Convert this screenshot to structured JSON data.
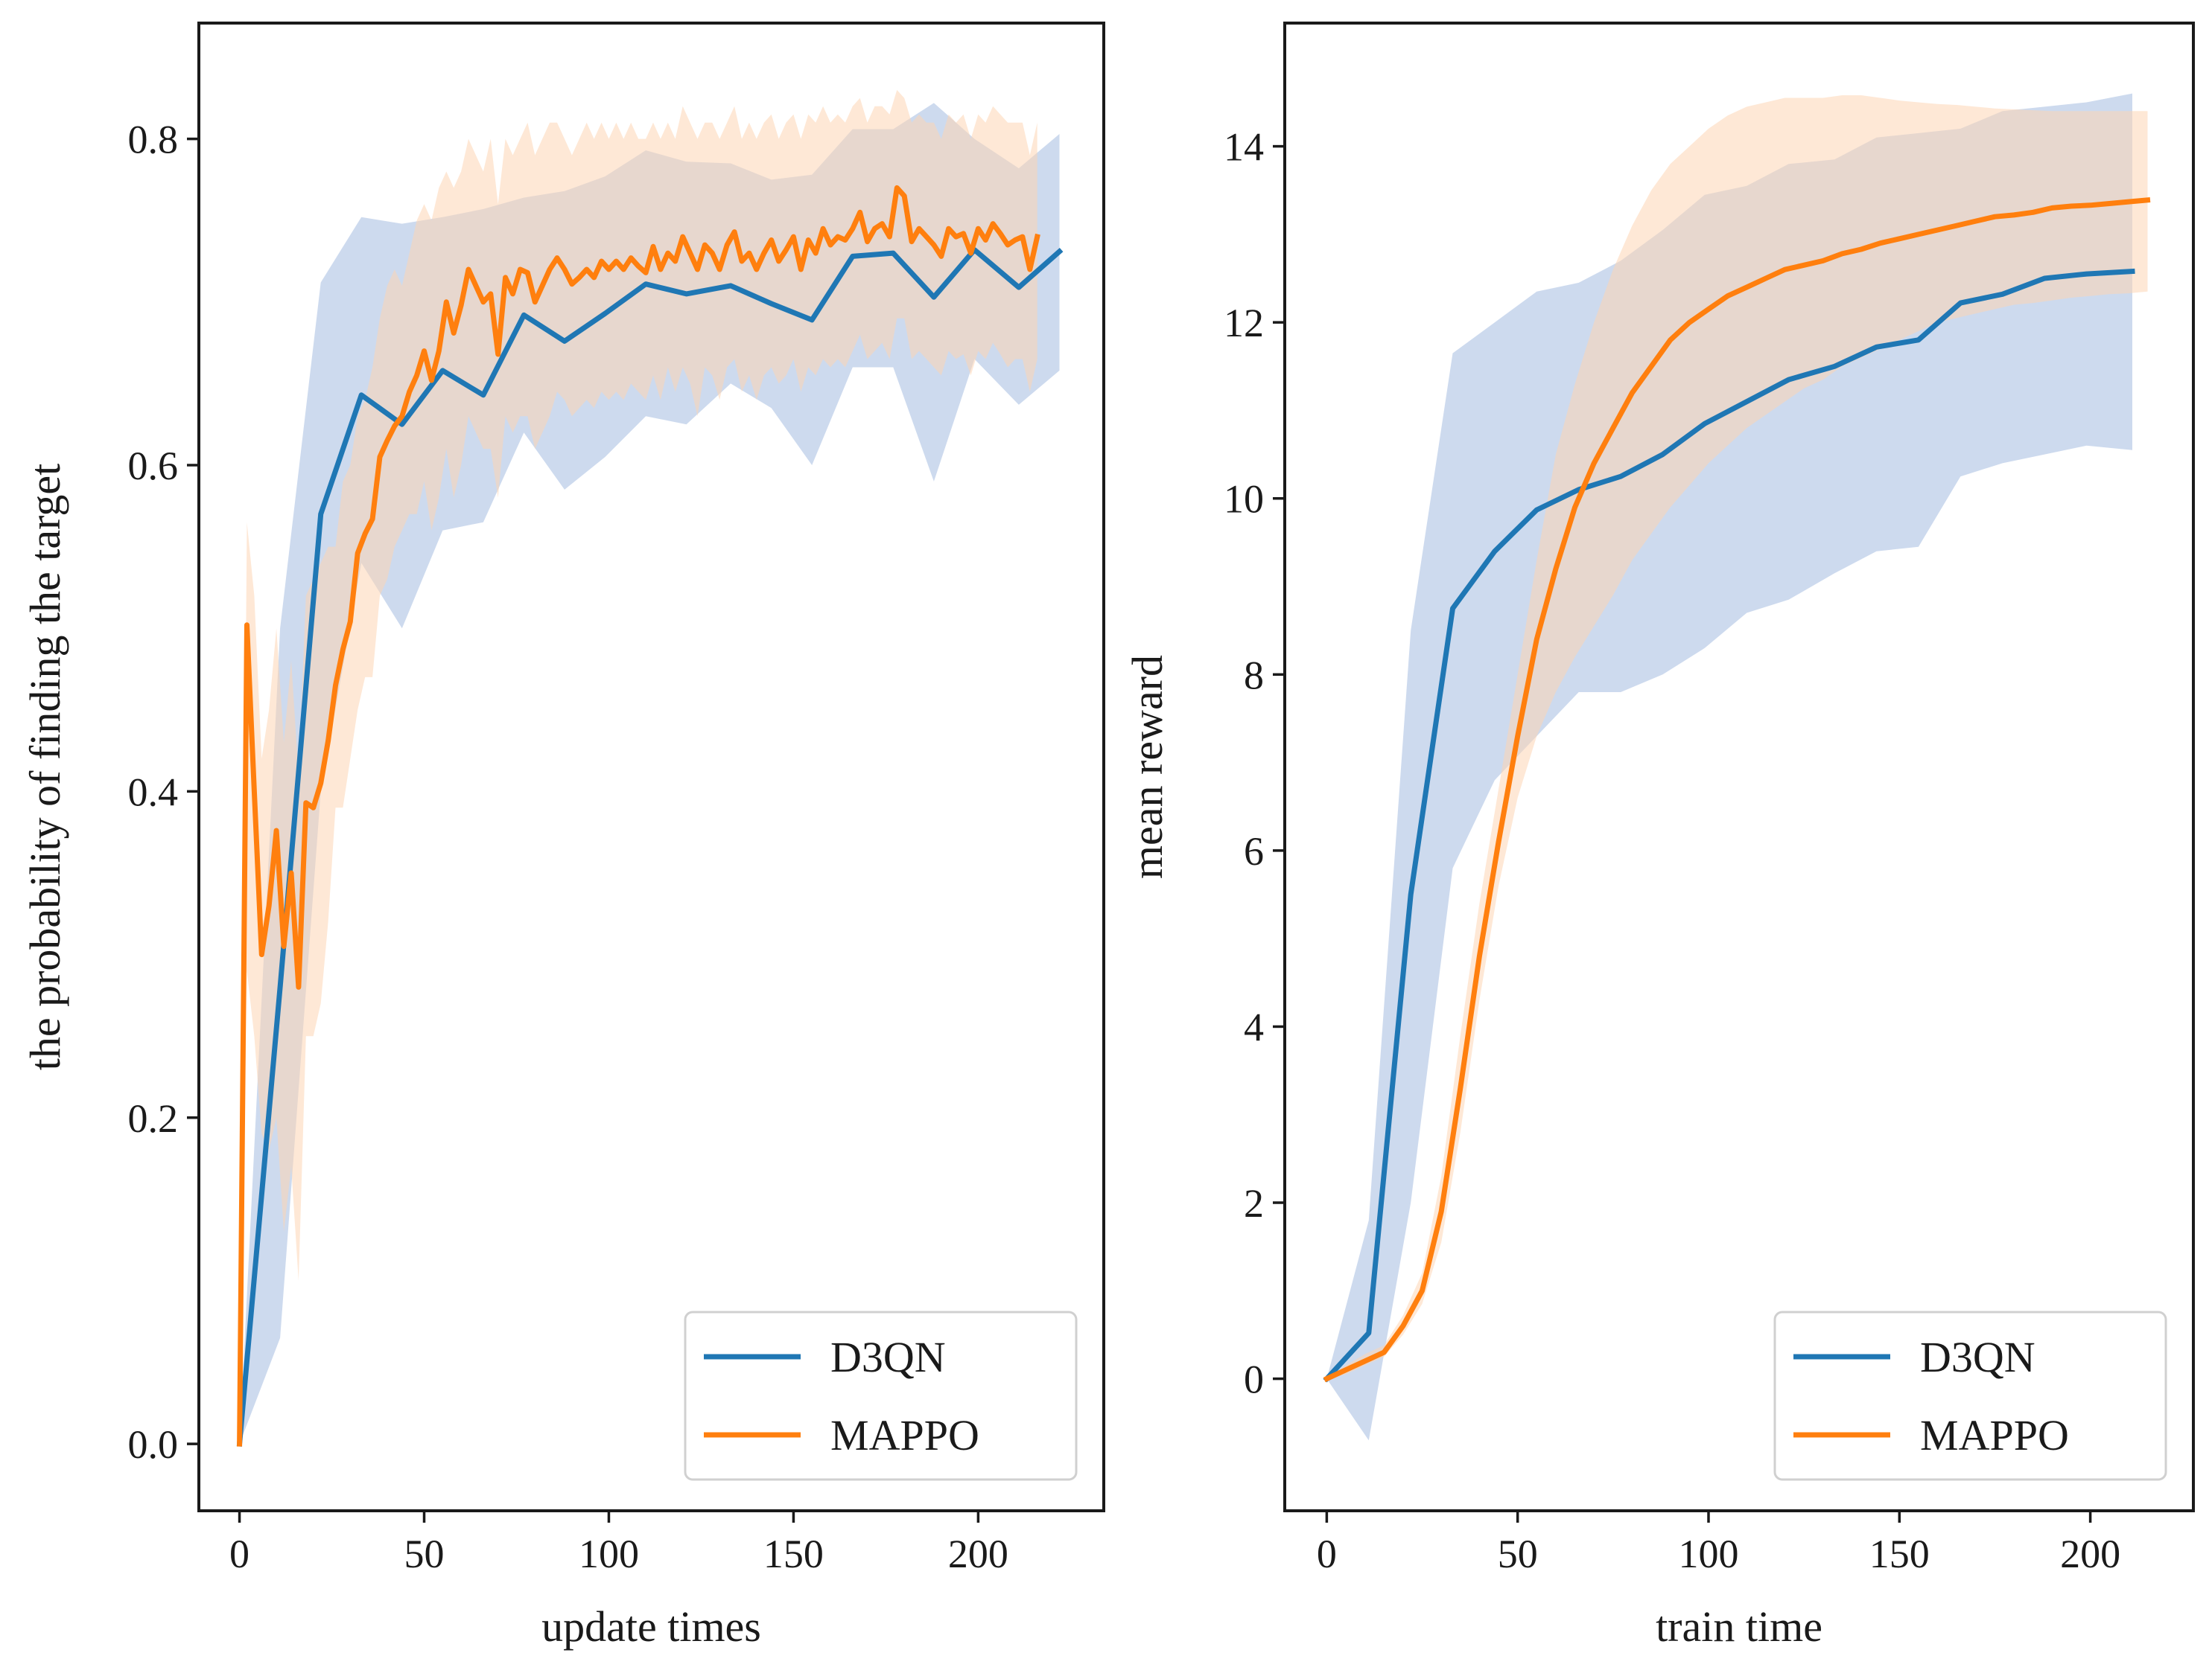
{
  "chart_data": [
    {
      "type": "line",
      "title": "",
      "xlabel": "update times",
      "ylabel": "the probability of finding the target",
      "xlim": [
        -11,
        234
      ],
      "ylim": [
        -0.041,
        0.871
      ],
      "xticks": [
        0,
        50,
        100,
        150,
        200
      ],
      "yticks": [
        0.0,
        0.2,
        0.4,
        0.6,
        0.8
      ],
      "xtick_labels": [
        "0",
        "50",
        "100",
        "150",
        "200"
      ],
      "ytick_labels": [
        "0.0",
        "0.2",
        "0.4",
        "0.6",
        "0.8"
      ],
      "grid": false,
      "legend_position": "lower-right",
      "series": [
        {
          "name": "D3QN",
          "color": "#1f77b4",
          "band_color": "#aec3e3",
          "x": [
            0,
            11,
            22,
            33,
            44,
            55,
            66,
            77,
            88,
            99,
            110,
            121,
            133,
            144,
            155,
            166,
            177,
            188,
            199,
            211,
            222
          ],
          "y": [
            0.0,
            0.28,
            0.57,
            0.643,
            0.625,
            0.658,
            0.643,
            0.692,
            0.676,
            0.693,
            0.711,
            0.705,
            0.71,
            0.699,
            0.689,
            0.728,
            0.73,
            0.703,
            0.732,
            0.709,
            0.731
          ],
          "lower": [
            0.0,
            0.065,
            0.4,
            0.54,
            0.5,
            0.56,
            0.565,
            0.62,
            0.585,
            0.605,
            0.63,
            0.625,
            0.65,
            0.635,
            0.6,
            0.66,
            0.66,
            0.59,
            0.665,
            0.637,
            0.658
          ],
          "upper": [
            0.0,
            0.5,
            0.712,
            0.752,
            0.748,
            0.752,
            0.757,
            0.764,
            0.768,
            0.777,
            0.793,
            0.786,
            0.785,
            0.775,
            0.778,
            0.806,
            0.806,
            0.822,
            0.8,
            0.782,
            0.803
          ]
        },
        {
          "name": "MAPPO",
          "color": "#ff7f0e",
          "band_color": "#fdd6b5",
          "x": [
            0,
            2,
            4,
            6,
            8,
            10,
            12,
            14,
            16,
            18,
            20,
            22,
            24,
            26,
            28,
            30,
            32,
            34,
            36,
            38,
            40,
            42,
            44,
            46,
            48,
            50,
            52,
            54,
            56,
            58,
            60,
            62,
            64,
            66,
            68,
            70,
            72,
            74,
            76,
            78,
            80,
            82,
            84,
            86,
            88,
            90,
            92,
            94,
            96,
            98,
            100,
            102,
            104,
            106,
            108,
            110,
            112,
            114,
            116,
            118,
            120,
            122,
            124,
            126,
            128,
            130,
            132,
            134,
            136,
            138,
            140,
            142,
            144,
            146,
            148,
            150,
            152,
            154,
            156,
            158,
            160,
            162,
            164,
            166,
            168,
            170,
            172,
            174,
            176,
            178,
            180,
            182,
            184,
            186,
            188,
            190,
            192,
            194,
            196,
            198,
            200,
            202,
            204,
            206,
            208,
            210,
            212,
            214,
            216
          ],
          "y": [
            0.0,
            0.502,
            0.4,
            0.3,
            0.33,
            0.376,
            0.305,
            0.35,
            0.28,
            0.393,
            0.39,
            0.405,
            0.431,
            0.465,
            0.487,
            0.504,
            0.546,
            0.558,
            0.567,
            0.605,
            0.615,
            0.624,
            0.63,
            0.645,
            0.655,
            0.67,
            0.652,
            0.67,
            0.7,
            0.681,
            0.698,
            0.72,
            0.71,
            0.7,
            0.705,
            0.668,
            0.715,
            0.705,
            0.72,
            0.718,
            0.7,
            0.71,
            0.72,
            0.727,
            0.72,
            0.711,
            0.715,
            0.72,
            0.715,
            0.725,
            0.72,
            0.725,
            0.72,
            0.727,
            0.722,
            0.718,
            0.734,
            0.72,
            0.73,
            0.725,
            0.74,
            0.73,
            0.72,
            0.735,
            0.73,
            0.72,
            0.735,
            0.743,
            0.725,
            0.73,
            0.72,
            0.73,
            0.738,
            0.725,
            0.732,
            0.74,
            0.72,
            0.738,
            0.73,
            0.745,
            0.735,
            0.74,
            0.738,
            0.745,
            0.755,
            0.737,
            0.745,
            0.748,
            0.74,
            0.77,
            0.765,
            0.737,
            0.745,
            0.74,
            0.735,
            0.728,
            0.745,
            0.74,
            0.742,
            0.73,
            0.745,
            0.738,
            0.748,
            0.742,
            0.735,
            0.738,
            0.74,
            0.72,
            0.74
          ],
          "lower": [
            0.0,
            0.29,
            0.25,
            0.19,
            0.18,
            0.2,
            0.13,
            0.17,
            0.1,
            0.25,
            0.25,
            0.27,
            0.32,
            0.39,
            0.39,
            0.42,
            0.45,
            0.47,
            0.47,
            0.52,
            0.53,
            0.55,
            0.56,
            0.57,
            0.57,
            0.59,
            0.56,
            0.58,
            0.61,
            0.58,
            0.6,
            0.63,
            0.62,
            0.61,
            0.61,
            0.58,
            0.63,
            0.62,
            0.63,
            0.63,
            0.61,
            0.62,
            0.63,
            0.645,
            0.64,
            0.63,
            0.635,
            0.64,
            0.635,
            0.645,
            0.64,
            0.645,
            0.64,
            0.65,
            0.645,
            0.64,
            0.655,
            0.64,
            0.66,
            0.645,
            0.66,
            0.65,
            0.63,
            0.66,
            0.655,
            0.64,
            0.66,
            0.665,
            0.645,
            0.655,
            0.64,
            0.655,
            0.66,
            0.65,
            0.655,
            0.665,
            0.645,
            0.66,
            0.655,
            0.665,
            0.66,
            0.665,
            0.66,
            0.67,
            0.68,
            0.665,
            0.67,
            0.675,
            0.665,
            0.69,
            0.69,
            0.665,
            0.67,
            0.665,
            0.66,
            0.655,
            0.67,
            0.665,
            0.668,
            0.655,
            0.67,
            0.665,
            0.675,
            0.668,
            0.66,
            0.665,
            0.665,
            0.645,
            0.665
          ],
          "upper": [
            0.0,
            0.565,
            0.52,
            0.42,
            0.45,
            0.5,
            0.43,
            0.48,
            0.41,
            0.52,
            0.53,
            0.54,
            0.55,
            0.55,
            0.59,
            0.6,
            0.63,
            0.64,
            0.66,
            0.69,
            0.71,
            0.72,
            0.71,
            0.73,
            0.75,
            0.76,
            0.75,
            0.77,
            0.78,
            0.77,
            0.78,
            0.8,
            0.79,
            0.78,
            0.8,
            0.76,
            0.8,
            0.79,
            0.8,
            0.81,
            0.79,
            0.8,
            0.81,
            0.81,
            0.8,
            0.79,
            0.8,
            0.81,
            0.8,
            0.81,
            0.8,
            0.81,
            0.8,
            0.81,
            0.8,
            0.8,
            0.81,
            0.8,
            0.81,
            0.8,
            0.82,
            0.81,
            0.8,
            0.81,
            0.81,
            0.8,
            0.81,
            0.82,
            0.8,
            0.81,
            0.8,
            0.81,
            0.815,
            0.8,
            0.81,
            0.815,
            0.8,
            0.815,
            0.81,
            0.82,
            0.81,
            0.815,
            0.81,
            0.82,
            0.825,
            0.81,
            0.82,
            0.82,
            0.815,
            0.83,
            0.825,
            0.81,
            0.815,
            0.81,
            0.81,
            0.8,
            0.815,
            0.81,
            0.815,
            0.8,
            0.815,
            0.81,
            0.82,
            0.815,
            0.81,
            0.81,
            0.81,
            0.79,
            0.81
          ]
        }
      ]
    },
    {
      "type": "line",
      "title": "",
      "xlabel": "train time",
      "ylabel": "mean reward",
      "xlim": [
        -11,
        227
      ],
      "ylim": [
        -1.5,
        15.4
      ],
      "xticks": [
        0,
        50,
        100,
        150,
        200
      ],
      "yticks": [
        0,
        2,
        4,
        6,
        8,
        10,
        12,
        14
      ],
      "xtick_labels": [
        "0",
        "50",
        "100",
        "150",
        "200"
      ],
      "ytick_labels": [
        "0",
        "2",
        "4",
        "6",
        "8",
        "10",
        "12",
        "14"
      ],
      "grid": false,
      "legend_position": "lower-right",
      "series": [
        {
          "name": "D3QN",
          "color": "#1f77b4",
          "band_color": "#aec3e3",
          "x": [
            0,
            11,
            22,
            33,
            44,
            55,
            66,
            77,
            88,
            99,
            110,
            121,
            133,
            144,
            155,
            166,
            177,
            188,
            199,
            211
          ],
          "y": [
            0.0,
            0.52,
            5.5,
            8.75,
            9.4,
            9.87,
            10.1,
            10.25,
            10.5,
            10.85,
            11.1,
            11.35,
            11.5,
            11.72,
            11.8,
            12.22,
            12.32,
            12.5,
            12.55,
            12.58
          ],
          "lower": [
            0.0,
            -0.7,
            2.0,
            5.8,
            6.8,
            7.3,
            7.8,
            7.8,
            8.0,
            8.3,
            8.7,
            8.85,
            9.15,
            9.4,
            9.45,
            10.25,
            10.4,
            10.5,
            10.6,
            10.55
          ],
          "upper": [
            0.0,
            1.8,
            8.5,
            11.65,
            12.0,
            12.35,
            12.45,
            12.7,
            13.05,
            13.45,
            13.55,
            13.8,
            13.85,
            14.1,
            14.15,
            14.2,
            14.4,
            14.45,
            14.5,
            14.6
          ]
        },
        {
          "name": "MAPPO",
          "color": "#ff7f0e",
          "band_color": "#fdd6b5",
          "x": [
            0,
            5,
            10,
            15,
            20,
            25,
            30,
            35,
            40,
            45,
            50,
            55,
            60,
            65,
            70,
            75,
            80,
            85,
            90,
            95,
            100,
            105,
            110,
            115,
            120,
            125,
            130,
            135,
            140,
            145,
            150,
            155,
            160,
            165,
            170,
            175,
            180,
            185,
            190,
            195,
            200,
            205,
            210,
            215
          ],
          "y": [
            0.0,
            0.1,
            0.2,
            0.3,
            0.6,
            1.0,
            1.9,
            3.3,
            4.8,
            6.1,
            7.3,
            8.4,
            9.2,
            9.9,
            10.4,
            10.8,
            11.2,
            11.5,
            11.8,
            12.0,
            12.15,
            12.3,
            12.4,
            12.5,
            12.6,
            12.65,
            12.7,
            12.78,
            12.83,
            12.9,
            12.95,
            13.0,
            13.05,
            13.1,
            13.15,
            13.2,
            13.22,
            13.25,
            13.3,
            13.32,
            13.33,
            13.35,
            13.37,
            13.39
          ],
          "lower": [
            0.0,
            0.05,
            0.15,
            0.25,
            0.5,
            0.85,
            1.55,
            2.8,
            4.3,
            5.6,
            6.6,
            7.3,
            7.8,
            8.2,
            8.55,
            8.9,
            9.3,
            9.6,
            9.9,
            10.15,
            10.4,
            10.6,
            10.8,
            10.95,
            11.1,
            11.25,
            11.35,
            11.5,
            11.6,
            11.7,
            11.8,
            11.9,
            12.0,
            12.05,
            12.1,
            12.15,
            12.2,
            12.22,
            12.25,
            12.28,
            12.3,
            12.32,
            12.33,
            12.35
          ],
          "upper": [
            0.0,
            0.15,
            0.28,
            0.38,
            0.72,
            1.2,
            2.3,
            3.9,
            5.4,
            6.7,
            8.0,
            9.3,
            10.5,
            11.3,
            12.0,
            12.6,
            13.1,
            13.5,
            13.8,
            14.0,
            14.2,
            14.35,
            14.45,
            14.5,
            14.55,
            14.55,
            14.55,
            14.58,
            14.58,
            14.55,
            14.52,
            14.5,
            14.48,
            14.47,
            14.45,
            14.43,
            14.42,
            14.41,
            14.4,
            14.4,
            14.4,
            14.4,
            14.4,
            14.4
          ]
        }
      ]
    }
  ]
}
